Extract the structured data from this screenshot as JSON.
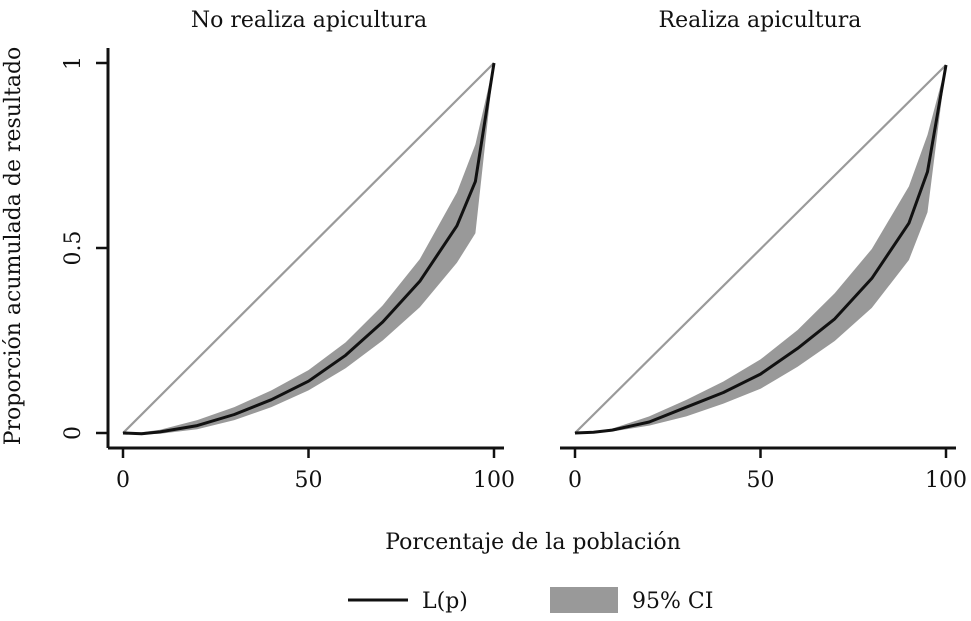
{
  "chart_data": [
    {
      "type": "line",
      "title": "No realiza apicultura",
      "xlabel": "Porcentaje de la población",
      "ylabel": "Proporción acumulada de resultado",
      "xlim": [
        0,
        100
      ],
      "ylim": [
        0,
        1
      ],
      "xticks": [
        "0",
        "50",
        "100"
      ],
      "yticks": [
        "0",
        "0.5",
        "1"
      ],
      "grid": false,
      "equality_line": {
        "x": [
          0,
          100
        ],
        "y": [
          0,
          1
        ]
      },
      "series": [
        {
          "name": "L(p)",
          "x": [
            0,
            5,
            10,
            20,
            30,
            40,
            50,
            60,
            70,
            80,
            90,
            95,
            100
          ],
          "y": [
            0,
            -0.002,
            0.003,
            0.02,
            0.05,
            0.09,
            0.14,
            0.21,
            0.3,
            0.41,
            0.56,
            0.68,
            1
          ]
        },
        {
          "name": "95% CI",
          "x": [
            0,
            5,
            10,
            20,
            30,
            40,
            50,
            60,
            70,
            80,
            90,
            95,
            100
          ],
          "lower": [
            0,
            -0.004,
            -0.002,
            0.01,
            0.035,
            0.07,
            0.115,
            0.175,
            0.25,
            0.34,
            0.46,
            0.54,
            1
          ],
          "upper": [
            0,
            0.002,
            0.009,
            0.035,
            0.07,
            0.115,
            0.17,
            0.245,
            0.345,
            0.47,
            0.65,
            0.78,
            1
          ]
        }
      ]
    },
    {
      "type": "line",
      "title": "Realiza apicultura",
      "xlabel": "Porcentaje de la población",
      "xlim": [
        0,
        100
      ],
      "ylim": [
        0,
        1
      ],
      "xticks": [
        "0",
        "50",
        "100"
      ],
      "grid": false,
      "equality_line": {
        "x": [
          0,
          100
        ],
        "y": [
          0,
          1
        ]
      },
      "series": [
        {
          "name": "L(p)",
          "x": [
            0,
            5,
            10,
            20,
            30,
            40,
            50,
            60,
            70,
            80,
            90,
            95,
            100
          ],
          "y": [
            0,
            0.002,
            0.008,
            0.03,
            0.07,
            0.11,
            0.16,
            0.23,
            0.31,
            0.42,
            0.57,
            0.71,
            1
          ]
        },
        {
          "name": "95% CI",
          "x": [
            0,
            5,
            10,
            20,
            30,
            40,
            50,
            60,
            70,
            80,
            90,
            95,
            100
          ],
          "lower": [
            0,
            0.0,
            0.004,
            0.02,
            0.045,
            0.08,
            0.12,
            0.18,
            0.25,
            0.34,
            0.47,
            0.6,
            1
          ],
          "upper": [
            0,
            0.004,
            0.012,
            0.045,
            0.09,
            0.14,
            0.2,
            0.28,
            0.38,
            0.5,
            0.67,
            0.81,
            1
          ]
        }
      ]
    }
  ],
  "legend": {
    "items": [
      {
        "label": "L(p)",
        "kind": "line",
        "color": "#111111"
      },
      {
        "label": "95% CI",
        "kind": "area",
        "color": "#999999"
      }
    ],
    "placement": "bottom-center"
  },
  "colors": {
    "curve": "#111111",
    "band": "#999999",
    "equality": "#9a9a9a",
    "axis": "#111111"
  }
}
